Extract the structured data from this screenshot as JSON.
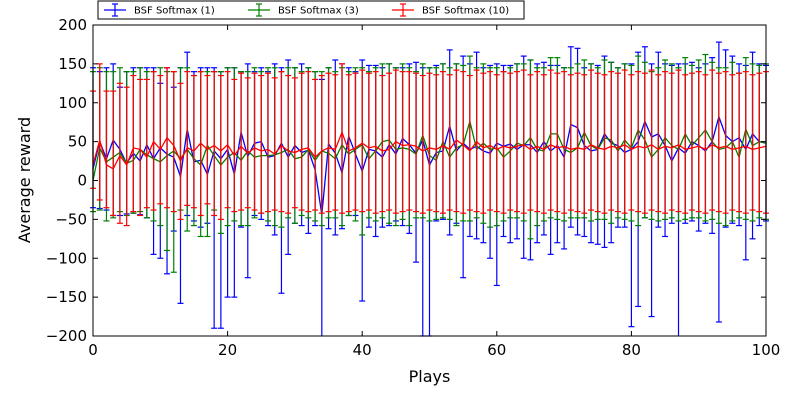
{
  "chart_data": {
    "type": "line",
    "errorbars": true,
    "title": "",
    "xlabel": "Plays",
    "ylabel": "Average reward",
    "xlim": [
      0,
      100
    ],
    "ylim": [
      -200,
      200
    ],
    "xticks": [
      0,
      20,
      40,
      60,
      80,
      100
    ],
    "yticks": [
      -200,
      -150,
      -100,
      -50,
      0,
      50,
      100,
      150,
      200
    ],
    "xtick_labels": [
      "0",
      "20",
      "40",
      "60",
      "80",
      "100"
    ],
    "ytick_labels": [
      "−200",
      "−150",
      "−100",
      "−50",
      "0",
      "50",
      "100",
      "150",
      "200"
    ],
    "grid": false,
    "legend_position": "top-left, above plot",
    "series": [
      {
        "name": "BSF Softmax (1)",
        "color": "#0000ff",
        "x": [
          0,
          1,
          2,
          3,
          4,
          5,
          6,
          7,
          8,
          9,
          10,
          11,
          12,
          13,
          14,
          15,
          16,
          17,
          18,
          19,
          20,
          21,
          22,
          23,
          24,
          25,
          26,
          27,
          28,
          29,
          30,
          31,
          32,
          33,
          34,
          35,
          36,
          37,
          38,
          39,
          40,
          41,
          42,
          43,
          44,
          45,
          46,
          47,
          48,
          49,
          50,
          51,
          52,
          53,
          54,
          55,
          56,
          57,
          58,
          59,
          60,
          61,
          62,
          63,
          64,
          65,
          66,
          67,
          68,
          69,
          70,
          71,
          72,
          73,
          74,
          75,
          76,
          77,
          78,
          79,
          80,
          81,
          82,
          83,
          84,
          85,
          86,
          87,
          88,
          89,
          90,
          91,
          92,
          93,
          94,
          95,
          96,
          97,
          98,
          99,
          100
        ],
        "y": [
          15,
          50,
          28,
          52,
          40,
          22,
          35,
          25,
          46,
          28,
          42,
          34,
          30,
          5,
          66,
          24,
          26,
          8,
          38,
          28,
          40,
          8,
          62,
          31,
          48,
          50,
          30,
          32,
          48,
          30,
          45,
          36,
          39,
          14,
          -44,
          47,
          35,
          10,
          57,
          34,
          12,
          40,
          38,
          30,
          46,
          34,
          54,
          46,
          35,
          52,
          20,
          36,
          38,
          70,
          38,
          48,
          40,
          44,
          38,
          35,
          48,
          44,
          47,
          40,
          46,
          46,
          36,
          50,
          38,
          45,
          30,
          72,
          68,
          45,
          38,
          40,
          60,
          48,
          45,
          36,
          40,
          50,
          76,
          56,
          60,
          45,
          25,
          42,
          35,
          50,
          45,
          38,
          50,
          82,
          58,
          50,
          55,
          40,
          60,
          50,
          48
        ],
        "err_low": [
          -35,
          -36,
          -38,
          -45,
          -45,
          -43,
          -42,
          -44,
          -48,
          -95,
          -100,
          -120,
          -65,
          -158,
          -45,
          -52,
          -60,
          -55,
          -190,
          -190,
          -150,
          -150,
          -60,
          -125,
          -45,
          -50,
          -58,
          -70,
          -145,
          -95,
          -55,
          -58,
          -68,
          -58,
          -232,
          -62,
          -70,
          -62,
          -45,
          -45,
          -155,
          -60,
          -72,
          -60,
          -58,
          -52,
          -58,
          -68,
          -105,
          -200,
          -200,
          -52,
          -50,
          -70,
          -55,
          -125,
          -72,
          -75,
          -80,
          -100,
          -135,
          -72,
          -80,
          -75,
          -100,
          -102,
          -80,
          -70,
          -95,
          -80,
          -88,
          -60,
          -70,
          -72,
          -80,
          -82,
          -86,
          -80,
          -60,
          -60,
          -188,
          -162,
          -48,
          -175,
          -60,
          -72,
          -55,
          -215,
          -55,
          -52,
          -65,
          -55,
          -68,
          -182,
          -60,
          -55,
          -58,
          -102,
          -75,
          -58,
          -52
        ],
        "err_high": [
          145,
          140,
          145,
          150,
          120,
          140,
          145,
          145,
          145,
          145,
          125,
          145,
          120,
          145,
          165,
          140,
          145,
          145,
          145,
          140,
          145,
          145,
          140,
          150,
          140,
          145,
          140,
          150,
          145,
          155,
          145,
          150,
          145,
          140,
          130,
          145,
          155,
          150,
          145,
          140,
          155,
          148,
          148,
          145,
          150,
          145,
          145,
          150,
          152,
          145,
          145,
          148,
          150,
          168,
          150,
          160,
          150,
          165,
          145,
          148,
          150,
          148,
          148,
          150,
          160,
          155,
          150,
          152,
          148,
          148,
          145,
          172,
          170,
          145,
          150,
          148,
          160,
          152,
          145,
          150,
          150,
          165,
          172,
          150,
          165,
          150,
          148,
          150,
          150,
          152,
          145,
          150,
          158,
          178,
          168,
          160,
          150,
          148,
          165,
          150,
          148
        ]
      },
      {
        "name": "BSF Softmax (3)",
        "color": "#008000",
        "x": [
          0,
          1,
          2,
          3,
          4,
          5,
          6,
          7,
          8,
          9,
          10,
          11,
          12,
          13,
          14,
          15,
          16,
          17,
          18,
          19,
          20,
          21,
          22,
          23,
          24,
          25,
          26,
          27,
          28,
          29,
          30,
          31,
          32,
          33,
          34,
          35,
          36,
          37,
          38,
          39,
          40,
          41,
          42,
          43,
          44,
          45,
          46,
          47,
          48,
          49,
          50,
          51,
          52,
          53,
          54,
          55,
          56,
          57,
          58,
          59,
          60,
          61,
          62,
          63,
          64,
          65,
          66,
          67,
          68,
          69,
          70,
          71,
          72,
          73,
          74,
          75,
          76,
          77,
          78,
          79,
          80,
          81,
          82,
          83,
          84,
          85,
          86,
          87,
          88,
          89,
          90,
          91,
          92,
          93,
          94,
          95,
          96,
          97,
          98,
          99,
          100
        ],
        "y": [
          0,
          42,
          24,
          30,
          36,
          22,
          26,
          40,
          33,
          28,
          24,
          32,
          38,
          28,
          40,
          28,
          20,
          45,
          32,
          20,
          30,
          36,
          26,
          38,
          30,
          32,
          32,
          33,
          36,
          40,
          28,
          30,
          40,
          26,
          38,
          35,
          28,
          46,
          34,
          40,
          46,
          28,
          38,
          50,
          52,
          40,
          42,
          40,
          34,
          58,
          32,
          26,
          50,
          30,
          42,
          46,
          76,
          40,
          48,
          40,
          42,
          30,
          38,
          48,
          45,
          55,
          40,
          38,
          60,
          60,
          40,
          36,
          42,
          62,
          45,
          40,
          55,
          52,
          38,
          52,
          42,
          65,
          52,
          30,
          40,
          55,
          45,
          40,
          60,
          45,
          55,
          65,
          50,
          40,
          42,
          50,
          30,
          66,
          45,
          50,
          48
        ],
        "err_low": [
          -40,
          -38,
          -52,
          -48,
          -40,
          -45,
          -42,
          -40,
          -48,
          -52,
          -58,
          -90,
          -118,
          -38,
          -65,
          -58,
          -72,
          -72,
          -38,
          -68,
          -58,
          -52,
          -58,
          -58,
          -48,
          -42,
          -52,
          -58,
          -60,
          -48,
          -55,
          -45,
          -48,
          -52,
          -58,
          -48,
          -48,
          -58,
          -45,
          -52,
          -70,
          -48,
          -52,
          -48,
          -55,
          -58,
          -50,
          -58,
          -48,
          -48,
          -52,
          -50,
          -48,
          -50,
          -58,
          -52,
          -52,
          -48,
          -55,
          -60,
          -58,
          -52,
          -48,
          -48,
          -52,
          -75,
          -58,
          -52,
          -48,
          -50,
          -52,
          -48,
          -48,
          -48,
          -52,
          -50,
          -50,
          -55,
          -48,
          -50,
          -52,
          -58,
          -48,
          -50,
          -52,
          -50,
          -48,
          -52,
          -50,
          -48,
          -48,
          -52,
          -50,
          -55,
          -58,
          -52,
          -48,
          -50,
          -52,
          -48,
          -50
        ],
        "err_high": [
          140,
          145,
          140,
          140,
          145,
          140,
          140,
          145,
          140,
          140,
          145,
          140,
          140,
          145,
          145,
          135,
          140,
          140,
          140,
          140,
          145,
          145,
          140,
          140,
          145,
          140,
          145,
          145,
          140,
          145,
          145,
          140,
          145,
          140,
          140,
          145,
          140,
          145,
          140,
          145,
          145,
          140,
          145,
          150,
          150,
          145,
          150,
          145,
          140,
          150,
          145,
          145,
          150,
          145,
          150,
          148,
          160,
          145,
          150,
          145,
          145,
          140,
          145,
          150,
          150,
          155,
          145,
          145,
          158,
          158,
          145,
          145,
          150,
          155,
          150,
          145,
          155,
          152,
          145,
          150,
          148,
          160,
          152,
          140,
          145,
          155,
          150,
          145,
          158,
          148,
          155,
          162,
          152,
          145,
          145,
          152,
          138,
          158,
          150,
          148,
          150
        ]
      },
      {
        "name": "BSF Softmax (10)",
        "color": "#ff0000",
        "x": [
          0,
          1,
          2,
          3,
          4,
          5,
          6,
          7,
          8,
          9,
          10,
          11,
          12,
          13,
          14,
          15,
          16,
          17,
          18,
          19,
          20,
          21,
          22,
          23,
          24,
          25,
          26,
          27,
          28,
          29,
          30,
          31,
          32,
          33,
          34,
          35,
          36,
          37,
          38,
          39,
          40,
          41,
          42,
          43,
          44,
          45,
          46,
          47,
          48,
          49,
          50,
          51,
          52,
          53,
          54,
          55,
          56,
          57,
          58,
          59,
          60,
          61,
          62,
          63,
          64,
          65,
          66,
          67,
          68,
          69,
          70,
          71,
          72,
          73,
          74,
          75,
          76,
          77,
          78,
          79,
          80,
          81,
          82,
          83,
          84,
          85,
          86,
          87,
          88,
          89,
          90,
          91,
          92,
          93,
          94,
          95,
          96,
          97,
          98,
          99,
          100
        ],
        "y": [
          20,
          52,
          20,
          15,
          32,
          20,
          42,
          40,
          30,
          50,
          40,
          55,
          45,
          25,
          42,
          38,
          48,
          40,
          45,
          38,
          46,
          32,
          44,
          35,
          42,
          38,
          40,
          34,
          45,
          38,
          36,
          40,
          42,
          30,
          38,
          42,
          40,
          62,
          38,
          42,
          48,
          42,
          44,
          38,
          40,
          50,
          45,
          46,
          44,
          38,
          42,
          40,
          45,
          40,
          52,
          46,
          38,
          50,
          42,
          45,
          40,
          44,
          42,
          44,
          46,
          40,
          44,
          40,
          46,
          42,
          44,
          40,
          42,
          40,
          46,
          42,
          40,
          44,
          42,
          46,
          40,
          44,
          42,
          46,
          40,
          44,
          42,
          46,
          40,
          42,
          44,
          40,
          46,
          42,
          44,
          40,
          42,
          44,
          40,
          42,
          44
        ],
        "err_low": [
          -10,
          -25,
          -35,
          -45,
          -55,
          -58,
          -40,
          -45,
          -35,
          -38,
          -30,
          -35,
          -40,
          -50,
          -32,
          -35,
          -45,
          -30,
          -45,
          -50,
          -35,
          -40,
          -38,
          -35,
          -38,
          -42,
          -40,
          -38,
          -40,
          -42,
          -35,
          -38,
          -40,
          -38,
          -42,
          -40,
          -38,
          -42,
          -40,
          -38,
          -40,
          -38,
          -42,
          -40,
          -38,
          -42,
          -40,
          -38,
          -40,
          -42,
          -38,
          -40,
          -42,
          -38,
          -40,
          -42,
          -38,
          -40,
          -42,
          -38,
          -40,
          -42,
          -38,
          -40,
          -42,
          -38,
          -40,
          -42,
          -38,
          -40,
          -42,
          -38,
          -40,
          -42,
          -38,
          -40,
          -42,
          -38,
          -40,
          -42,
          -38,
          -40,
          -42,
          -38,
          -40,
          -42,
          -38,
          -40,
          -42,
          -38,
          -40,
          -42,
          -38,
          -40,
          -42,
          -38,
          -40,
          -42,
          -38,
          -40,
          -42
        ],
        "err_high": [
          115,
          150,
          115,
          115,
          125,
          120,
          135,
          130,
          130,
          140,
          135,
          145,
          140,
          125,
          140,
          135,
          140,
          135,
          140,
          135,
          140,
          130,
          138,
          132,
          138,
          135,
          138,
          132,
          140,
          135,
          132,
          138,
          140,
          130,
          135,
          138,
          136,
          150,
          136,
          138,
          142,
          138,
          140,
          135,
          138,
          142,
          140,
          140,
          138,
          135,
          138,
          136,
          140,
          136,
          142,
          140,
          135,
          142,
          138,
          140,
          136,
          140,
          138,
          140,
          142,
          136,
          140,
          136,
          142,
          138,
          140,
          136,
          138,
          136,
          142,
          138,
          136,
          140,
          138,
          142,
          136,
          140,
          138,
          142,
          136,
          140,
          138,
          142,
          136,
          138,
          140,
          136,
          142,
          138,
          140,
          136,
          138,
          140,
          136,
          138,
          140
        ]
      }
    ]
  }
}
